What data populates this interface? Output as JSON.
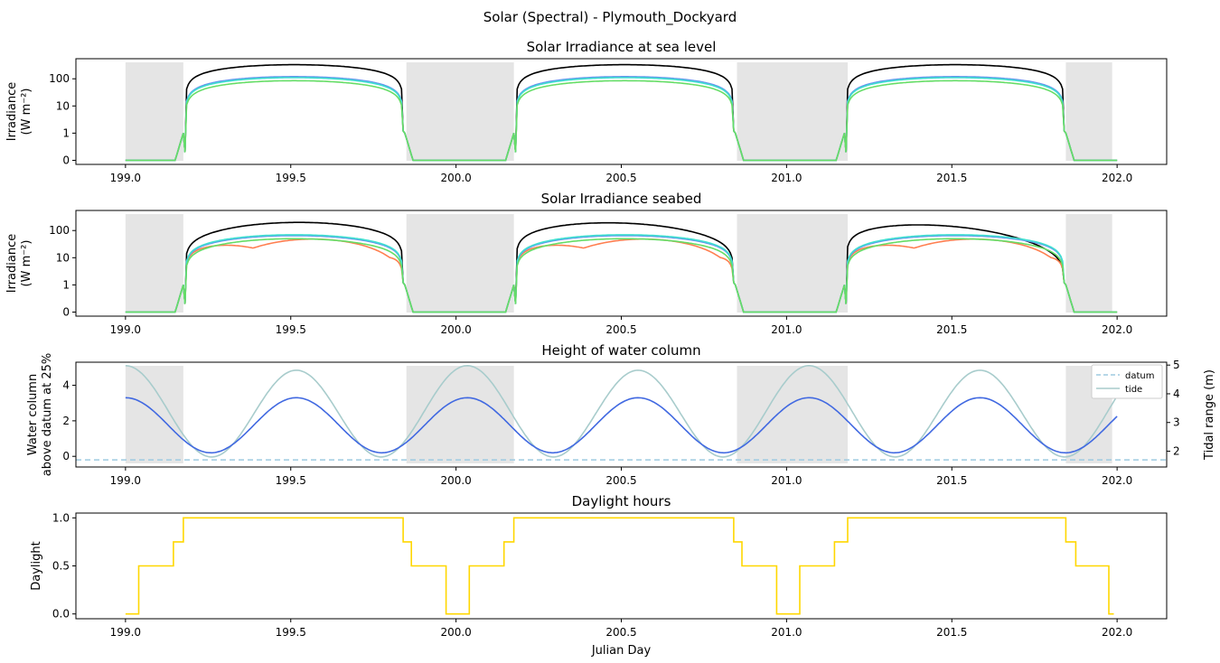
{
  "figure": {
    "suptitle": "Solar (Spectral) - Plymouth_Dockyard"
  },
  "chart_data": [
    {
      "type": "line",
      "title": "Solar Irradiance at sea level",
      "ylabel": [
        "Irradiance",
        "(W m⁻²)"
      ],
      "xlabel": "",
      "x_range": [
        199.0,
        202.0
      ],
      "xlim": [
        198.85,
        202.15
      ],
      "yscale": "symlog",
      "y_ticks": [
        0,
        1,
        10,
        100
      ],
      "x_ticks": [
        199.0,
        199.5,
        200.0,
        200.5,
        201.0,
        201.5,
        202.0
      ],
      "night_shading": [
        [
          199.0,
          199.175
        ],
        [
          199.85,
          200.175
        ],
        [
          200.85,
          201.185
        ],
        [
          201.845,
          201.985
        ]
      ],
      "series": [
        {
          "color": "#000000",
          "peak": 330,
          "values_at_midday": [
            330,
            330,
            330
          ]
        },
        {
          "color": "#ff7f50",
          "peak": 115
        },
        {
          "color": "#6495ed",
          "peak": 120
        },
        {
          "color": "#40e0d0",
          "peak": 110
        },
        {
          "color": "#66dd66",
          "peak": 85
        }
      ]
    },
    {
      "type": "line",
      "title": "Solar Irradiance seabed",
      "ylabel": [
        "Irradiance",
        "(W m⁻²)"
      ],
      "xlabel": "",
      "x_range": [
        199.0,
        202.0
      ],
      "xlim": [
        198.85,
        202.15
      ],
      "yscale": "symlog",
      "y_ticks": [
        0,
        1,
        10,
        100
      ],
      "x_ticks": [
        199.0,
        199.5,
        200.0,
        200.5,
        201.0,
        201.5,
        202.0
      ],
      "night_shading": [
        [
          199.0,
          199.175
        ],
        [
          199.85,
          200.175
        ],
        [
          200.85,
          201.185
        ],
        [
          201.845,
          201.985
        ]
      ],
      "series": [
        {
          "color": "#000000",
          "peak": 200
        },
        {
          "color": "#ff7f50",
          "peak": 50
        },
        {
          "color": "#6495ed",
          "peak": 65
        },
        {
          "color": "#40e0d0",
          "peak": 70
        },
        {
          "color": "#66dd66",
          "peak": 50
        }
      ]
    },
    {
      "type": "line",
      "title": "Height of water column",
      "ylabel": [
        "Water column",
        "above datum at 25%"
      ],
      "ylabel_right": "Tidal range (m)",
      "xlabel": "",
      "x_range": [
        199.0,
        202.0
      ],
      "xlim": [
        198.85,
        202.15
      ],
      "ylim": [
        -0.6,
        5.3
      ],
      "y_ticks": [
        0,
        2,
        4
      ],
      "ylim_right": [
        1.45,
        5.1
      ],
      "y_ticks_right": [
        2,
        3,
        4,
        5
      ],
      "x_ticks": [
        199.0,
        199.5,
        200.0,
        200.5,
        201.0,
        201.5,
        202.0
      ],
      "night_shading": [
        [
          199.0,
          199.175
        ],
        [
          199.85,
          200.175
        ],
        [
          200.85,
          201.185
        ],
        [
          201.845,
          201.985
        ]
      ],
      "legend": {
        "location": "upper right",
        "entries": [
          "datum",
          "tide"
        ]
      },
      "series": [
        {
          "name": "datum",
          "color": "#9ecae1",
          "style": "dashed",
          "value": -0.2
        },
        {
          "name": "tide",
          "color": "#a8cccc",
          "axis": "right"
        },
        {
          "color": "#4169e1",
          "axis": "left"
        }
      ]
    },
    {
      "type": "line",
      "title": "Daylight hours",
      "ylabel": "Daylight",
      "xlabel": "Julian Day",
      "x_range": [
        199.0,
        202.0
      ],
      "xlim": [
        198.85,
        202.15
      ],
      "ylim": [
        -0.05,
        1.05
      ],
      "y_ticks": [
        0.0,
        0.5,
        1.0
      ],
      "x_ticks": [
        199.0,
        199.5,
        200.0,
        200.5,
        201.0,
        201.5,
        202.0
      ],
      "series": [
        {
          "color": "#ffd700",
          "steps": [
            [
              199.0,
              0
            ],
            [
              199.04,
              0.5
            ],
            [
              199.145,
              0.75
            ],
            [
              199.175,
              1.0
            ],
            [
              199.84,
              0.75
            ],
            [
              199.865,
              0.5
            ],
            [
              199.97,
              0
            ],
            [
              200.04,
              0.5
            ],
            [
              200.145,
              0.75
            ],
            [
              200.175,
              1.0
            ],
            [
              200.84,
              0.75
            ],
            [
              200.865,
              0.5
            ],
            [
              200.97,
              0
            ],
            [
              201.04,
              0.5
            ],
            [
              201.145,
              0.75
            ],
            [
              201.185,
              1.0
            ],
            [
              201.845,
              0.75
            ],
            [
              201.875,
              0.5
            ],
            [
              201.975,
              0
            ],
            [
              201.99,
              0
            ]
          ]
        }
      ]
    }
  ]
}
